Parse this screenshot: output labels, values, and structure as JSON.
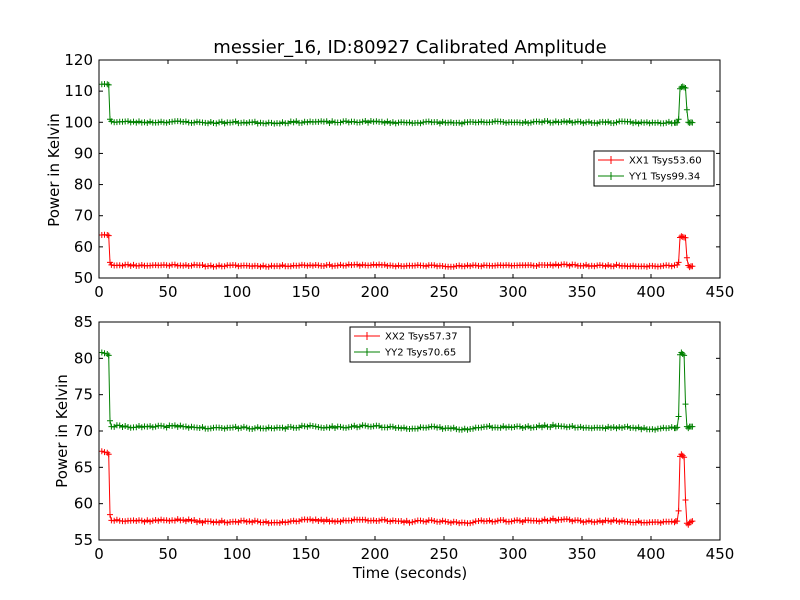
{
  "figure": {
    "title": "messier_16, ID:80927 Calibrated Amplitude"
  },
  "chart_data": [
    {
      "type": "line",
      "title": "messier_16, ID:80927 Calibrated Amplitude",
      "xlabel": "",
      "ylabel": "Power in Kelvin",
      "xlim": [
        0,
        450
      ],
      "ylim": [
        50,
        120
      ],
      "xticks": [
        0,
        50,
        100,
        150,
        200,
        250,
        300,
        350,
        400,
        450
      ],
      "yticks": [
        50,
        60,
        70,
        80,
        90,
        100,
        110,
        120
      ],
      "grid": false,
      "legend": "center-right",
      "marker": "+",
      "series": [
        {
          "name": "XX1 Tsys53.60",
          "color": "#ff0000",
          "baseline": 54.0,
          "jitter": 0.25,
          "seed": 11,
          "points": [
            [
              2,
              63.8
            ],
            [
              4,
              63.9
            ],
            [
              6,
              63.8
            ],
            [
              7,
              63.6
            ],
            [
              8,
              55.0
            ],
            [
              9,
              54.2
            ],
            [
              419,
              54.2
            ],
            [
              420,
              55.0
            ],
            [
              421,
              63.0
            ],
            [
              422,
              63.4
            ],
            [
              423,
              63.2
            ],
            [
              424,
              63.0
            ],
            [
              425,
              62.9
            ],
            [
              426,
              56.5
            ],
            [
              427,
              54.0
            ],
            [
              428,
              53.5
            ],
            [
              429,
              53.8
            ],
            [
              430,
              53.8
            ]
          ]
        },
        {
          "name": "YY1 Tsys99.34",
          "color": "#008000",
          "baseline": 100.0,
          "jitter": 0.3,
          "seed": 23,
          "points": [
            [
              2,
              112.2
            ],
            [
              4,
              112.3
            ],
            [
              6,
              112.2
            ],
            [
              7,
              112.0
            ],
            [
              8,
              101.0
            ],
            [
              9,
              100.3
            ],
            [
              418,
              99.8
            ],
            [
              419,
              99.9
            ],
            [
              420,
              101.0
            ],
            [
              421,
              110.8
            ],
            [
              422,
              111.3
            ],
            [
              423,
              111.5
            ],
            [
              424,
              111.2
            ],
            [
              425,
              111.0
            ],
            [
              426,
              104.0
            ],
            [
              427,
              100.0
            ],
            [
              428,
              99.8
            ],
            [
              429,
              100.0
            ],
            [
              430,
              99.9
            ]
          ]
        }
      ]
    },
    {
      "type": "line",
      "title": "",
      "xlabel": "Time (seconds)",
      "ylabel": "Power in Kelvin",
      "xlim": [
        0,
        450
      ],
      "ylim": [
        55,
        85
      ],
      "xticks": [
        0,
        50,
        100,
        150,
        200,
        250,
        300,
        350,
        400,
        450
      ],
      "yticks": [
        55,
        60,
        65,
        70,
        75,
        80,
        85
      ],
      "grid": false,
      "legend": "upper-center",
      "marker": "+",
      "series": [
        {
          "name": "XX2 Tsys57.37",
          "color": "#ff0000",
          "baseline": 57.6,
          "jitter": 0.15,
          "seed": 37,
          "points": [
            [
              2,
              67.2
            ],
            [
              4,
              67.1
            ],
            [
              6,
              67.0
            ],
            [
              7,
              66.8
            ],
            [
              8,
              58.5
            ],
            [
              9,
              57.7
            ],
            [
              418,
              57.6
            ],
            [
              419,
              57.6
            ],
            [
              420,
              59.0
            ],
            [
              421,
              66.5
            ],
            [
              422,
              66.8
            ],
            [
              423,
              66.6
            ],
            [
              424,
              66.4
            ],
            [
              425,
              60.5
            ],
            [
              426,
              57.3
            ],
            [
              427,
              57.1
            ],
            [
              428,
              57.4
            ],
            [
              429,
              57.5
            ],
            [
              430,
              57.6
            ]
          ]
        },
        {
          "name": "YY2 Tsys70.65",
          "color": "#008000",
          "baseline": 70.5,
          "jitter": 0.15,
          "seed": 41,
          "points": [
            [
              2,
              80.8
            ],
            [
              4,
              80.7
            ],
            [
              6,
              80.6
            ],
            [
              7,
              80.4
            ],
            [
              8,
              71.4
            ],
            [
              9,
              70.6
            ],
            [
              418,
              70.4
            ],
            [
              419,
              70.5
            ],
            [
              420,
              72.0
            ],
            [
              421,
              80.5
            ],
            [
              422,
              80.8
            ],
            [
              423,
              80.6
            ],
            [
              424,
              80.4
            ],
            [
              425,
              73.7
            ],
            [
              426,
              70.6
            ],
            [
              427,
              70.4
            ],
            [
              428,
              70.6
            ],
            [
              429,
              70.6
            ],
            [
              430,
              70.6
            ]
          ]
        }
      ]
    }
  ]
}
